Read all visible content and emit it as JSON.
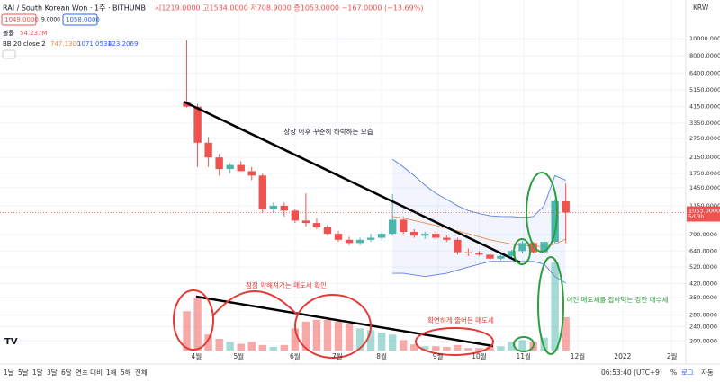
{
  "header": {
    "symbol": "RAI / South Korean Won · 1주 · BITHUMB",
    "ohlc": "시1219.0000 고1534.0000 저708.9000 종1053.0000 −167.0000 (−13.69%)",
    "sell_box": "1049.0000",
    "spread": "9.0000",
    "buy_box": "1058.0000",
    "volume_name": "볼륨",
    "volume_value": "54.237M",
    "bb_name": "BB 20 close 2",
    "bb_basis": "747.1300",
    "bb_upper": "1071.0531",
    "bb_lower": "423.2069",
    "currency": "KRW"
  },
  "toolbar": {
    "ranges": [
      "1날",
      "5날",
      "1달",
      "3달",
      "6달",
      "연초 대비",
      "1해",
      "5해",
      "전체"
    ],
    "time": "06:53:40 (UTC+9)",
    "percent": "%",
    "log": "로그",
    "auto": "자동"
  },
  "chart_data": {
    "type": "candlestick",
    "log_scale": true,
    "categories": [
      null,
      null,
      null,
      null,
      null,
      null,
      null,
      null,
      null,
      null,
      null,
      null,
      null,
      null,
      null,
      null,
      null,
      null,
      null,
      null,
      null,
      null,
      null,
      null,
      null,
      null,
      null,
      null,
      null,
      null,
      null,
      null,
      null,
      null,
      null,
      null
    ],
    "open": [
      4400,
      4150,
      2600,
      2150,
      1850,
      1950,
      1800,
      1700,
      1100,
      1150,
      1080,
      950,
      920,
      870,
      800,
      740,
      710,
      740,
      760,
      800,
      960,
      820,
      780,
      800,
      760,
      740,
      630,
      620,
      610,
      580,
      600,
      640,
      710,
      630,
      720,
      1219
    ],
    "high": [
      9800,
      4300,
      2800,
      2250,
      2000,
      2050,
      1900,
      1750,
      1200,
      1200,
      1100,
      1350,
      980,
      900,
      830,
      770,
      760,
      800,
      820,
      1340,
      1000,
      850,
      820,
      830,
      790,
      760,
      660,
      640,
      620,
      610,
      650,
      730,
      720,
      760,
      1250,
      1534
    ],
    "low": [
      4100,
      1900,
      1900,
      1700,
      1750,
      1800,
      1600,
      1050,
      1050,
      1000,
      920,
      880,
      850,
      780,
      720,
      690,
      690,
      720,
      740,
      780,
      800,
      760,
      750,
      740,
      720,
      610,
      600,
      600,
      570,
      570,
      590,
      620,
      620,
      610,
      700,
      708.9
    ],
    "close": [
      4150,
      2600,
      2150,
      1850,
      1950,
      1800,
      1700,
      1100,
      1150,
      1080,
      950,
      920,
      870,
      800,
      740,
      710,
      740,
      760,
      800,
      960,
      820,
      780,
      800,
      760,
      740,
      630,
      620,
      610,
      580,
      600,
      640,
      710,
      630,
      720,
      1219,
      1053
    ],
    "volume": [
      64,
      86,
      26,
      19,
      14,
      11,
      14,
      9,
      6,
      9,
      36,
      47,
      50,
      50,
      47,
      43,
      36,
      33,
      29,
      26,
      17,
      10,
      7,
      7,
      6,
      9,
      4,
      4,
      6,
      7,
      14,
      17,
      14,
      21,
      143,
      54.237
    ],
    "volume_ylim": [
      0,
      190
    ],
    "bb_upper": [
      null,
      null,
      null,
      null,
      null,
      null,
      null,
      null,
      null,
      null,
      null,
      null,
      null,
      null,
      null,
      null,
      null,
      null,
      null,
      2100,
      1900,
      1700,
      1500,
      1350,
      1250,
      1150,
      1080,
      1040,
      1010,
      1000,
      1000,
      990,
      1000,
      1150,
      1700,
      1600
    ],
    "bb_basis": [
      null,
      null,
      null,
      null,
      null,
      null,
      null,
      null,
      null,
      null,
      null,
      null,
      null,
      null,
      null,
      null,
      null,
      null,
      null,
      1000,
      980,
      950,
      920,
      890,
      860,
      830,
      800,
      770,
      740,
      720,
      700,
      690,
      680,
      680,
      700,
      747.13
    ],
    "bb_lower": [
      null,
      null,
      null,
      null,
      null,
      null,
      null,
      null,
      null,
      null,
      null,
      null,
      null,
      null,
      null,
      null,
      null,
      null,
      null,
      480,
      480,
      470,
      460,
      470,
      480,
      500,
      520,
      540,
      560,
      560,
      560,
      560,
      560,
      540,
      460,
      423.2069
    ],
    "up_color": "#4db6ac",
    "down_color": "#ef5350",
    "bb_band_color": "#5b7fe0",
    "bb_basis_color": "#ec8a4f",
    "last_price": {
      "value": 1053,
      "label": "1053.0000"
    },
    "countdown": "5d 3h",
    "ylim": [
      150,
      16500
    ],
    "yticks": [
      {
        "value": 10000,
        "label": "10000.0000"
      },
      {
        "value": 8000,
        "label": "8000.0000"
      },
      {
        "value": 6400,
        "label": "6400.0000"
      },
      {
        "value": 5150,
        "label": "5150.0000"
      },
      {
        "value": 4150,
        "label": "4150.0000"
      },
      {
        "value": 3350,
        "label": "3350.0000"
      },
      {
        "value": 2750,
        "label": "2750.0000"
      },
      {
        "value": 2150,
        "label": "2150.0000"
      },
      {
        "value": 1750,
        "label": "1750.0000"
      },
      {
        "value": 1450,
        "label": "1450.0000"
      },
      {
        "value": 1150,
        "label": "1150.0000"
      },
      {
        "value": 790,
        "label": "790.0000"
      },
      {
        "value": 640,
        "label": "640.0000"
      },
      {
        "value": 520,
        "label": "520.0000"
      },
      {
        "value": 420,
        "label": "420.0000"
      },
      {
        "value": 350,
        "label": "350.0000"
      },
      {
        "value": 280,
        "label": "280.0000"
      },
      {
        "value": 240,
        "label": "240.0000"
      },
      {
        "value": 200,
        "label": "200.0000"
      }
    ],
    "xlim": [
      -17.25,
      46.08
    ],
    "xticks": [
      {
        "value": 0.9,
        "label": "4월"
      },
      {
        "value": 4.8,
        "label": "5월"
      },
      {
        "value": 10,
        "label": "6월"
      },
      {
        "value": 13.9,
        "label": "7월"
      },
      {
        "value": 18,
        "label": "8월"
      },
      {
        "value": 23.2,
        "label": "9월"
      },
      {
        "value": 27,
        "label": "10월"
      },
      {
        "value": 31.1,
        "label": "11월"
      },
      {
        "value": 36.1,
        "label": "12월"
      },
      {
        "value": 40.25,
        "label": "2022"
      },
      {
        "value": 44.8,
        "label": "2월"
      }
    ],
    "annotations": [
      "상장 이후 꾸준히 하락하는 모습",
      "점점 약해져가는 매도세 확인",
      "확연하게 줄어든 매도세",
      "이전 매도세를 잡아먹는 강한 매수세"
    ]
  }
}
